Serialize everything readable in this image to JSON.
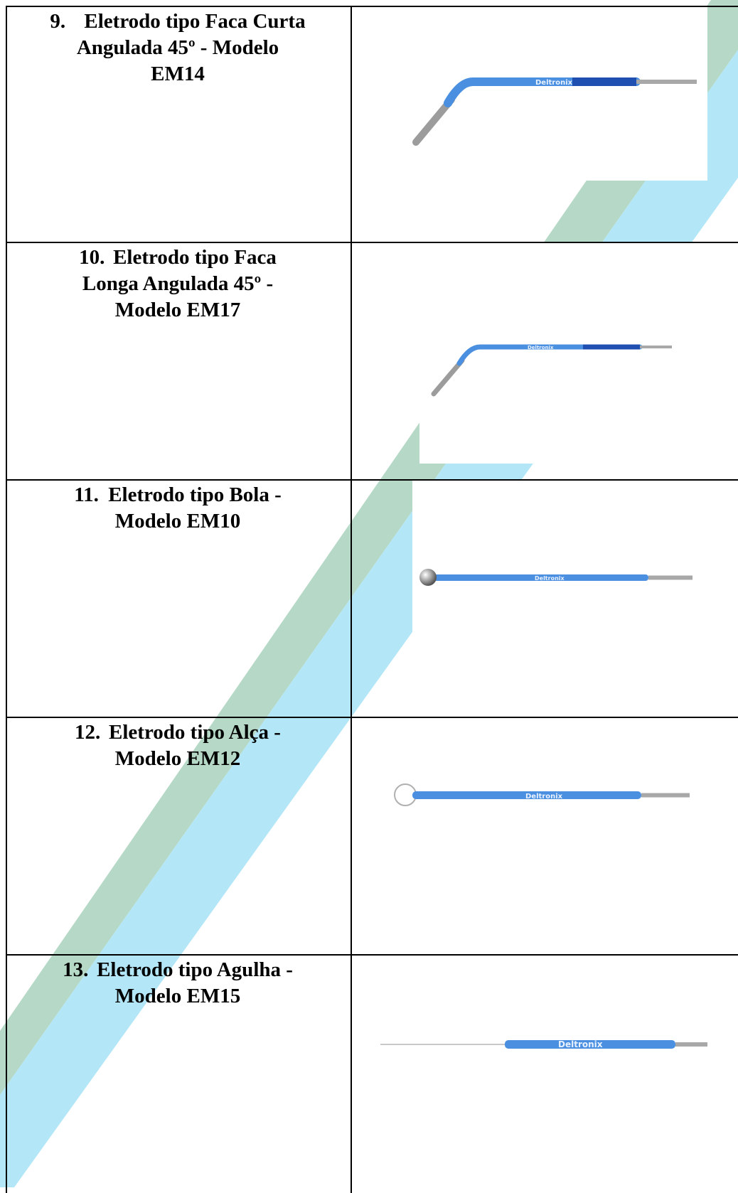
{
  "rows": [
    {
      "number": "9.",
      "title": "Eletrodo tipo Faca Curta Angulada 45º - Modelo EM14",
      "brand": "Deltronix",
      "tip": "curved-short-blade-icon"
    },
    {
      "number": "10.",
      "title": "Eletrodo tipo Faca Longa Angulada 45º - Modelo EM17",
      "brand": "Deltronix",
      "tip": "curved-long-blade-icon"
    },
    {
      "number": "11.",
      "title": "Eletrodo tipo Bola - Modelo EM10",
      "brand": "Deltronix",
      "tip": "ball-tip-icon"
    },
    {
      "number": "12.",
      "title": "Eletrodo tipo Alça - Modelo EM12",
      "brand": "Deltronix",
      "tip": "loop-tip-icon"
    },
    {
      "number": "13.",
      "title": "Eletrodo tipo Agulha - Modelo EM15",
      "brand": "Deltronix",
      "tip": "needle-tip-icon"
    }
  ],
  "colors": {
    "green_stripe": "#b5d9c6",
    "blue_stripe": "#b3e6f7",
    "handle_blue": "#4a8fe0",
    "handle_dark": "#1f4fb0",
    "metal": "#a8a8a8"
  }
}
